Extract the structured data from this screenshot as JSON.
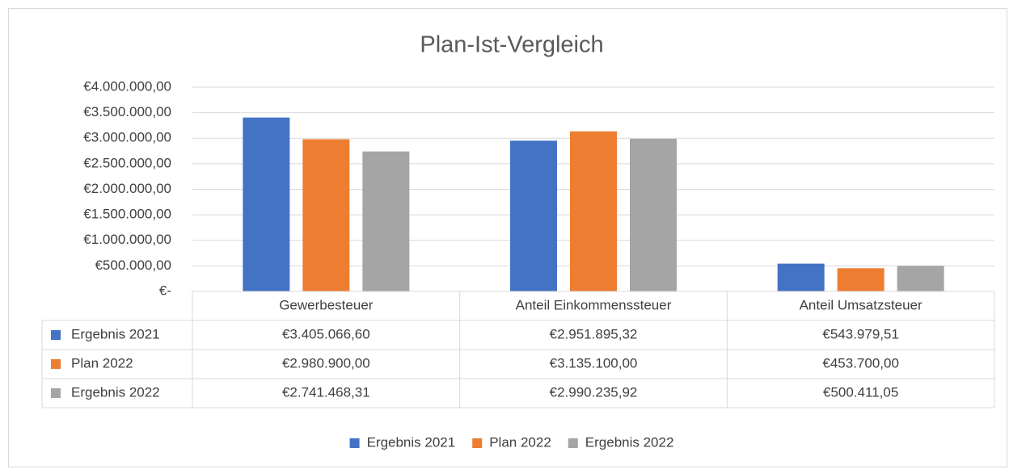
{
  "chart_data": {
    "type": "bar",
    "title": "Plan-Ist-Vergleich",
    "categories": [
      "Gewerbesteuer",
      "Anteil Einkommenssteuer",
      "Anteil Umsatzsteuer"
    ],
    "series": [
      {
        "name": "Ergebnis 2021",
        "color": "#4472c4",
        "values": [
          3405066.6,
          2951895.32,
          543979.51
        ],
        "value_labels": [
          "€3.405.066,60",
          "€2.951.895,32",
          "€543.979,51"
        ]
      },
      {
        "name": "Plan 2022",
        "color": "#ed7d31",
        "values": [
          2980900.0,
          3135100.0,
          453700.0
        ],
        "value_labels": [
          "€2.980.900,00",
          "€3.135.100,00",
          "€453.700,00"
        ]
      },
      {
        "name": "Ergebnis 2022",
        "color": "#a5a5a5",
        "values": [
          2741468.31,
          2990235.92,
          500411.05
        ],
        "value_labels": [
          "€2.741.468,31",
          "€2.990.235,92",
          "€500.411,05"
        ]
      }
    ],
    "ylim": [
      0,
      4000000
    ],
    "yticks": [
      {
        "value": 0,
        "label": "€-"
      },
      {
        "value": 500000,
        "label": "€500.000,00"
      },
      {
        "value": 1000000,
        "label": "€1.000.000,00"
      },
      {
        "value": 1500000,
        "label": "€1.500.000,00"
      },
      {
        "value": 2000000,
        "label": "€2.000.000,00"
      },
      {
        "value": 2500000,
        "label": "€2.500.000,00"
      },
      {
        "value": 3000000,
        "label": "€3.000.000,00"
      },
      {
        "value": 3500000,
        "label": "€3.500.000,00"
      },
      {
        "value": 4000000,
        "label": "€4.000.000,00"
      }
    ],
    "grid": true,
    "legend": "bottom",
    "data_table": true
  }
}
